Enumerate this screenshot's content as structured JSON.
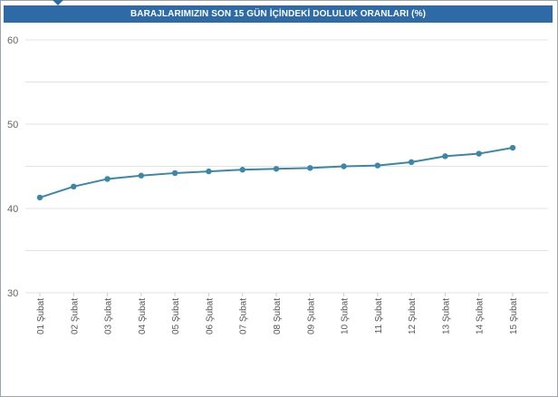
{
  "chart_data": {
    "type": "line",
    "title": "BARAJLARIMIZIN SON 15 GÜN İÇİNDEKİ DOLULUK ORANLARI (%)",
    "xlabel": "",
    "ylabel": "",
    "categories": [
      "01 Şubat",
      "02 Şubat",
      "03 Şubat",
      "04 Şubat",
      "05 Şubat",
      "06 Şubat",
      "07 Şubat",
      "08 Şubat",
      "09 Şubat",
      "10 Şubat",
      "11 Şubat",
      "12 Şubat",
      "13 Şubat",
      "14 Şubat",
      "15 Şubat"
    ],
    "series": [
      {
        "values": [
          41.3,
          42.6,
          43.5,
          43.9,
          44.2,
          44.4,
          44.6,
          44.7,
          44.8,
          45.0,
          45.1,
          45.5,
          46.2,
          46.5,
          47.2
        ]
      }
    ],
    "ylim": [
      30,
      60
    ],
    "yticks": [
      30,
      40,
      50,
      60
    ],
    "grid": true,
    "legend": "none",
    "colors": {
      "line": "#3b87a8",
      "header": "#2e6aa5",
      "grid": "#e3e3e3"
    }
  }
}
